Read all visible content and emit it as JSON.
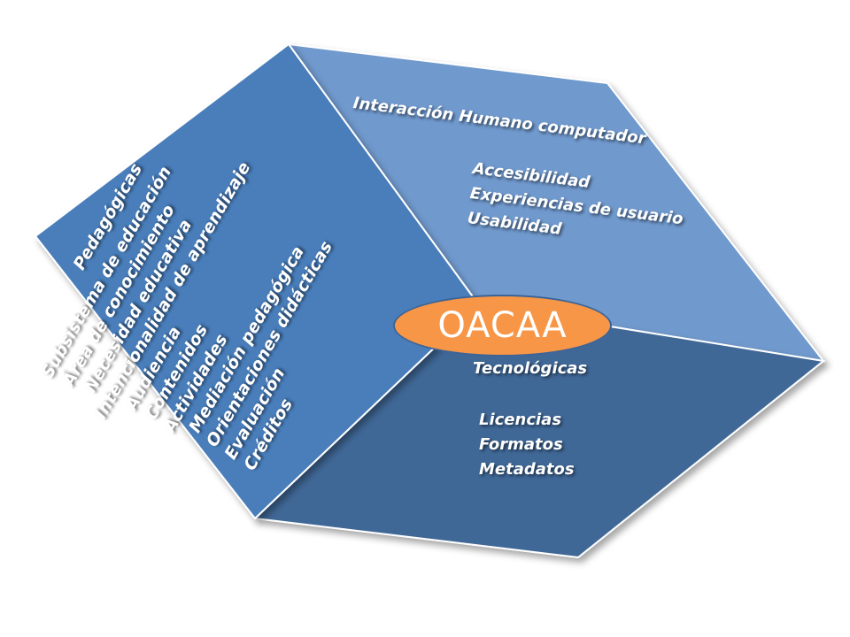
{
  "center": {
    "label": "OACAA",
    "fill": "#f79646",
    "border": "#3e6496"
  },
  "faces": {
    "pedagogicas": {
      "title": "Pedagógicas",
      "color": "#4a7ebb",
      "items": [
        "Subsistema de educación",
        "Área de conocimiento",
        "Necesidad educativa",
        "Intencionalidad de aprendizaje",
        "Audiencia",
        "Contenidos",
        "Actividades",
        "Mediación pedagógica",
        "Orientaciones didácticas",
        "Evaluación",
        "Créditos"
      ]
    },
    "interaccion": {
      "title": "Interacción Humano computador",
      "color": "#7099cd",
      "items": [
        "Accesibilidad",
        "Experiencias de usuario",
        "Usabilidad"
      ]
    },
    "tecnologicas": {
      "title": "Tecnológicas",
      "color": "#416897",
      "items": [
        "Licencias",
        "Formatos",
        "Metadatos"
      ]
    }
  }
}
